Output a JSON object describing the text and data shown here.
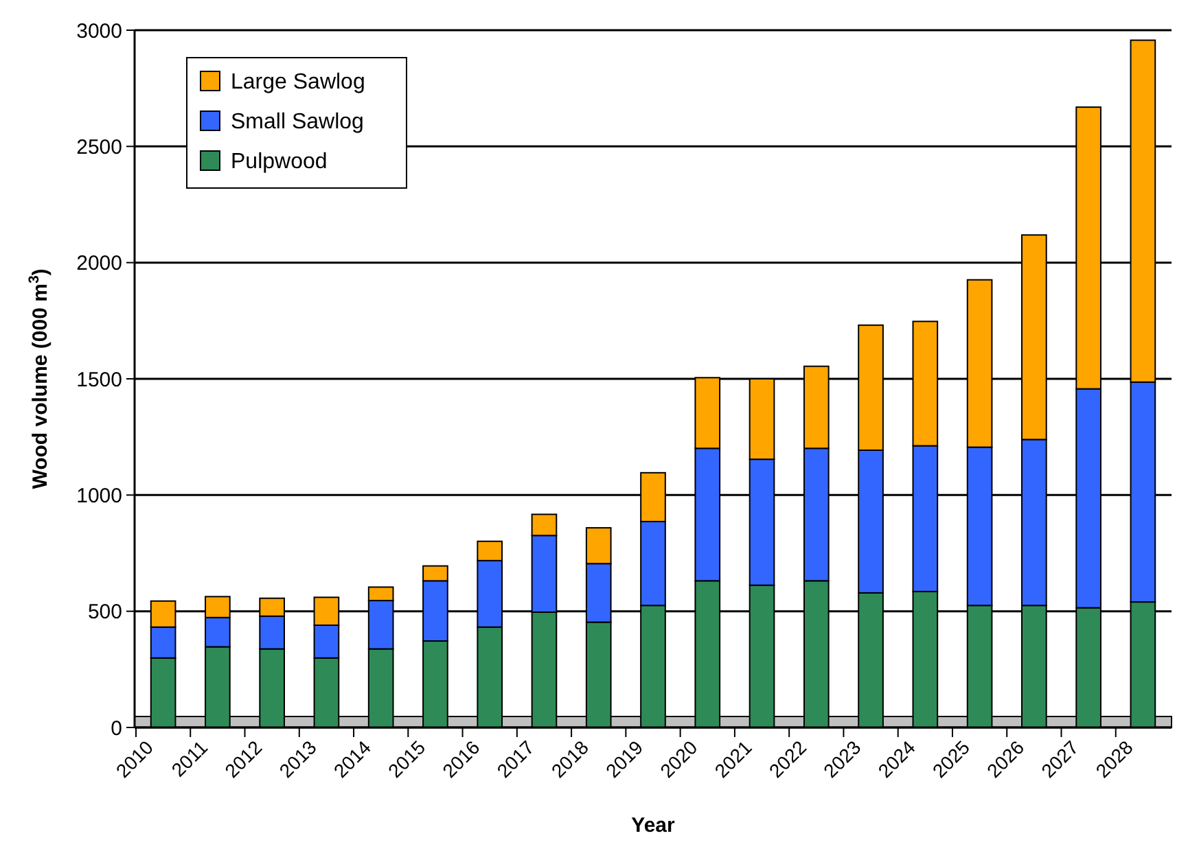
{
  "chart_data": {
    "type": "bar",
    "stacked": true,
    "xlabel": "Year",
    "ylabel": "Wood volume (000 m$^{3}$)",
    "categories": [
      "2010",
      "2011",
      "2012",
      "2013",
      "2014",
      "2015",
      "2016",
      "2017",
      "2018",
      "2019",
      "2020",
      "2021",
      "2022",
      "2023",
      "2024",
      "2025",
      "2026",
      "2027",
      "2028"
    ],
    "series": [
      {
        "name": "Pulpwood",
        "color": "#2e8b57",
        "values": [
          299,
          347,
          338,
          299,
          338,
          372,
          432,
          496,
          453,
          525,
          631,
          612,
          631,
          579,
          585,
          525,
          525,
          515,
          540
        ]
      },
      {
        "name": "Small Sawlog",
        "color": "#3366ff",
        "values": [
          133,
          126,
          141,
          141,
          208,
          259,
          286,
          330,
          252,
          361,
          570,
          542,
          570,
          614,
          627,
          681,
          714,
          942,
          946
        ]
      },
      {
        "name": "Large Sawlog",
        "color": "#ffa500",
        "values": [
          112,
          90,
          77,
          120,
          58,
          64,
          83,
          91,
          154,
          210,
          304,
          346,
          353,
          538,
          535,
          720,
          880,
          1212,
          1471
        ]
      }
    ],
    "ylim": [
      0,
      3000
    ],
    "yticks": [
      0,
      500,
      1000,
      1500,
      2000,
      2500,
      3000
    ],
    "grid": "y",
    "legend": "top left"
  }
}
